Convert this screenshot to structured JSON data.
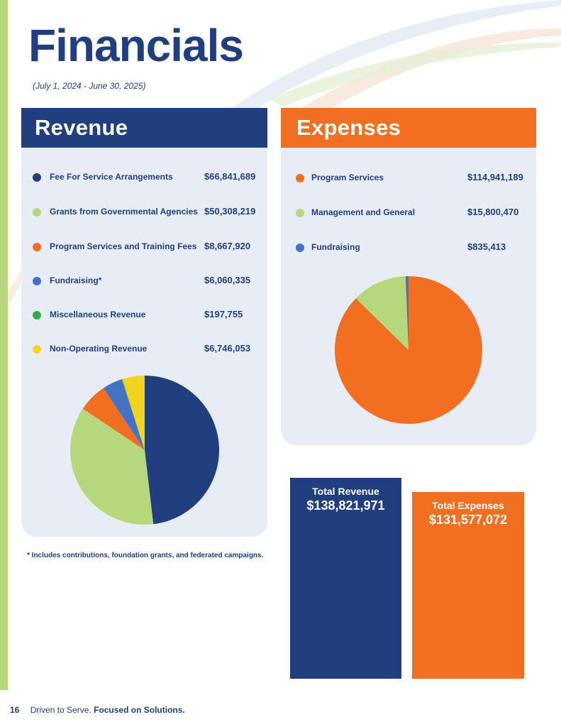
{
  "page": {
    "title": "Financials",
    "subtitle": "(July 1, 2024 - June 30, 2025)",
    "footnote": "* Includes contributions, foundation grants, and federated campaigns.",
    "footer": {
      "page_number": "16",
      "tagline_regular": "Driven to Serve.",
      "tagline_bold": "Focused on Solutions."
    }
  },
  "colors": {
    "navy": "#213f7e",
    "orange": "#f26f21",
    "lime": "#b6d77a",
    "blue": "#4472c4",
    "green": "#3aa84a",
    "yellow": "#f2d41f",
    "panel_bg": "#e8edf5"
  },
  "revenue": {
    "heading": "Revenue",
    "items": [
      {
        "label": "Fee For Service Arrangements",
        "amount": "$66,841,689",
        "color": "#213f7e"
      },
      {
        "label": "Grants from Governmental Agencies",
        "amount": "$50,308,219",
        "color": "#b6d77a"
      },
      {
        "label": "Program Services and Training Fees",
        "amount": "$8,667,920",
        "color": "#f26f21"
      },
      {
        "label": "Fundraising*",
        "amount": "$6,060,335",
        "color": "#4472c4"
      },
      {
        "label": "Miscellaneous Revenue",
        "amount": "$197,755",
        "color": "#3aa84a"
      },
      {
        "label": "Non-Operating Revenue",
        "amount": "$6,746,053",
        "color": "#f2d41f"
      }
    ],
    "total_label": "Total Revenue",
    "total_value": "$138,821,971"
  },
  "expenses": {
    "heading": "Expenses",
    "items": [
      {
        "label": "Program Services",
        "amount": "$114,941,189",
        "color": "#f26f21"
      },
      {
        "label": "Management and General",
        "amount": "$15,800,470",
        "color": "#b6d77a"
      },
      {
        "label": "Fundraising",
        "amount": "$835,413",
        "color": "#4472c4"
      }
    ],
    "total_label": "Total Expenses",
    "total_value": "$131,577,072"
  },
  "chart_data": [
    {
      "type": "pie",
      "categories": [
        "Fee For Service Arrangements",
        "Grants from Governmental Agencies",
        "Program Services and Training Fees",
        "Fundraising*",
        "Miscellaneous Revenue",
        "Non-Operating Revenue"
      ],
      "values": [
        66841689,
        50308219,
        8667920,
        6060335,
        197755,
        6746053
      ],
      "colors": [
        "#213f7e",
        "#b6d77a",
        "#f26f21",
        "#4472c4",
        "#3aa84a",
        "#f2d41f"
      ],
      "title": "Revenue"
    },
    {
      "type": "pie",
      "categories": [
        "Program Services",
        "Management and General",
        "Fundraising"
      ],
      "values": [
        114941189,
        15800470,
        835413
      ],
      "colors": [
        "#f26f21",
        "#b6d77a",
        "#4472c4"
      ],
      "title": "Expenses"
    },
    {
      "type": "bar",
      "categories": [
        "Total Revenue",
        "Total Expenses"
      ],
      "values": [
        138821971,
        131577072
      ],
      "colors": [
        "#213f7e",
        "#f26f21"
      ]
    }
  ]
}
